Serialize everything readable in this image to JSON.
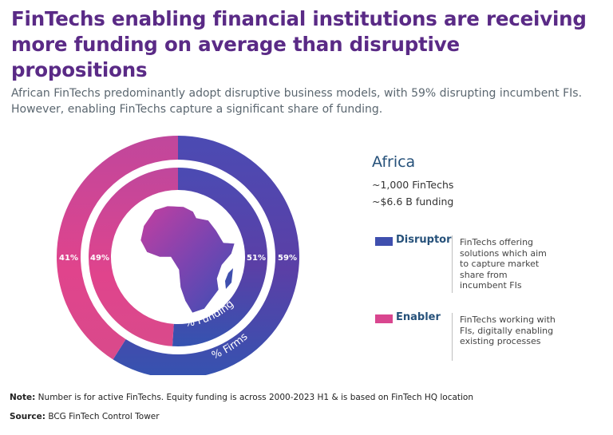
{
  "title": "FinTechs enabling financial institutions are receiving more funding on average than disruptive propositions",
  "subtitle": "African FinTechs predominantly adopt disruptive business models, with 59% disrupting incumbent FIs. However, enabling FinTechs capture a significant share of funding.",
  "panel": {
    "region": "Africa",
    "fintech_count": "~1,000 FinTechs",
    "funding_total": "~$6.6 B funding"
  },
  "legend": [
    {
      "label": "Disruptor",
      "description": "FinTechs offering solutions which aim to capture market share from incumbent FIs",
      "color": "#3f4fae"
    },
    {
      "label": "Enabler",
      "description": "FinTechs working with FIs, digitally enabling existing processes",
      "color": "#d9468f"
    }
  ],
  "chart_data": {
    "type": "pie",
    "rings": [
      {
        "name": "% Firms",
        "position": "outer",
        "slices": [
          {
            "label": "Disruptor",
            "value": 59,
            "text": "59%"
          },
          {
            "label": "Enabler",
            "value": 41,
            "text": "41%"
          }
        ]
      },
      {
        "name": "% Funding",
        "position": "inner",
        "slices": [
          {
            "label": "Disruptor",
            "value": 51,
            "text": "51%"
          },
          {
            "label": "Enabler",
            "value": 49,
            "text": "49%"
          }
        ]
      }
    ]
  },
  "footnotes": {
    "note_label": "Note:",
    "note_text": " Number is for active FinTechs. Equity funding is across 2000-2023 H1 & is based on FinTech HQ location",
    "source_label": "Source:",
    "source_text": " BCG FinTech Control Tower"
  }
}
